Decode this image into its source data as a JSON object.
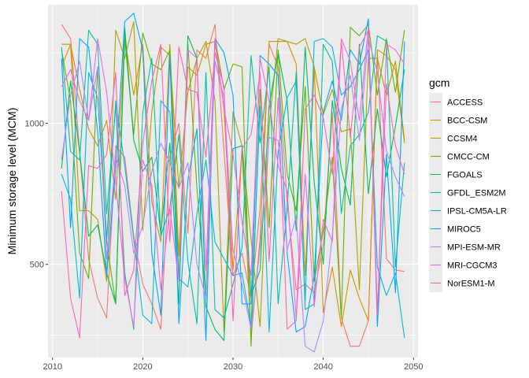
{
  "chart_data": {
    "type": "line",
    "title": "",
    "xlabel": "",
    "ylabel": "Minimum storage level (MCM)",
    "xlim": [
      2009.5,
      2050.5
    ],
    "ylim": [
      170,
      1420
    ],
    "x_ticks": [
      2010,
      2020,
      2030,
      2040,
      2050
    ],
    "y_ticks": [
      500,
      1000
    ],
    "x_tick_labels": [
      "2010",
      "2020",
      "2030",
      "2040",
      "2050"
    ],
    "y_tick_labels": [
      "500",
      "1000"
    ],
    "legend_title": "gcm",
    "legend_position": "right",
    "grid": true,
    "panel_background": "#ebebeb",
    "x": [
      2011,
      2012,
      2013,
      2014,
      2015,
      2016,
      2017,
      2018,
      2019,
      2020,
      2021,
      2022,
      2023,
      2024,
      2025,
      2026,
      2027,
      2028,
      2029,
      2030,
      2031,
      2032,
      2033,
      2034,
      2035,
      2036,
      2037,
      2038,
      2039,
      2040,
      2041,
      2042,
      2043,
      2044,
      2045,
      2046,
      2047,
      2048,
      2049
    ],
    "series": [
      {
        "name": "ACCESS",
        "color": "#F8766D",
        "values": [
          1350,
          1300,
          900,
          520,
          380,
          310,
          920,
          880,
          600,
          430,
          360,
          270,
          880,
          1000,
          610,
          1260,
          1230,
          1350,
          900,
          460,
          540,
          380,
          700,
          1280,
          1200,
          720,
          410,
          430,
          400,
          570,
          1040,
          310,
          210,
          210,
          300,
          1250,
          520,
          480,
          475
        ]
      },
      {
        "name": "BCC-CSM",
        "color": "#DB8E00",
        "values": [
          1200,
          1280,
          1120,
          980,
          920,
          1010,
          730,
          1300,
          1100,
          1280,
          720,
          580,
          1280,
          530,
          1200,
          1170,
          1280,
          1290,
          1050,
          480,
          910,
          240,
          590,
          1290,
          1290,
          1290,
          1210,
          460,
          1200,
          330,
          490,
          280,
          480,
          380,
          300,
          1260,
          1240,
          1190,
          930
        ]
      },
      {
        "name": "CCSM4",
        "color": "#AEA200",
        "values": [
          1280,
          1280,
          690,
          690,
          660,
          440,
          1330,
          1230,
          1360,
          620,
          1040,
          1270,
          1240,
          770,
          1110,
          1230,
          1290,
          1080,
          260,
          1040,
          920,
          590,
          280,
          990,
          1300,
          1290,
          1280,
          1300,
          1200,
          1030,
          1120,
          970,
          980,
          410,
          1230,
          1230,
          1100,
          1220,
          940
        ]
      },
      {
        "name": "CMCC-CM",
        "color": "#64B200",
        "values": [
          1260,
          1080,
          540,
          450,
          1200,
          580,
          360,
          1300,
          960,
          1320,
          1210,
          1190,
          1260,
          450,
          1280,
          770,
          380,
          1300,
          1120,
          1210,
          1200,
          210,
          1120,
          630,
          1260,
          820,
          690,
          1130,
          440,
          620,
          880,
          310,
          1340,
          1310,
          1350,
          1100,
          1300,
          1110,
          1330
        ]
      },
      {
        "name": "FGOALS",
        "color": "#00BD5C",
        "values": [
          840,
          1150,
          900,
          600,
          640,
          470,
          360,
          1340,
          940,
          830,
          880,
          610,
          930,
          360,
          1310,
          1230,
          350,
          270,
          230,
          910,
          920,
          390,
          480,
          1060,
          1250,
          1080,
          620,
          1270,
          790,
          500,
          1080,
          840,
          710,
          1280,
          750,
          1050,
          810,
          990,
          1190
        ]
      },
      {
        "name": "GFDL_ESM2M",
        "color": "#00C1A7",
        "values": [
          1270,
          900,
          870,
          1330,
          1280,
          680,
          1060,
          470,
          270,
          1040,
          1230,
          600,
          700,
          960,
          510,
          290,
          1180,
          340,
          310,
          430,
          560,
          1240,
          930,
          1200,
          360,
          700,
          1180,
          340,
          360,
          1280,
          1220,
          680,
          920,
          960,
          1040,
          1310,
          1290,
          490,
          860
        ]
      },
      {
        "name": "IPSL-CM5A-LR",
        "color": "#00BADE",
        "values": [
          820,
          730,
          380,
          1180,
          1090,
          590,
          1080,
          850,
          590,
          320,
          290,
          1080,
          1040,
          450,
          420,
          680,
          870,
          580,
          520,
          460,
          470,
          280,
          1060,
          260,
          900,
          1090,
          1150,
          370,
          1290,
          1300,
          1270,
          1100,
          1130,
          1190,
          1260,
          490,
          390,
          470,
          240
        ]
      },
      {
        "name": "MIROC5",
        "color": "#00A6FF",
        "values": [
          1230,
          630,
          1300,
          1270,
          970,
          460,
          840,
          1360,
          1390,
          1260,
          540,
          320,
          1240,
          290,
          800,
          980,
          230,
          1300,
          1250,
          1100,
          360,
          360,
          1240,
          1210,
          1170,
          540,
          260,
          280,
          460,
          1040,
          1150,
          1010,
          1260,
          1210,
          1370,
          280,
          890,
          400,
          1290
        ]
      },
      {
        "name": "MPI-ESM-MR",
        "color": "#B385FF",
        "values": [
          870,
          1100,
          1220,
          1010,
          1200,
          520,
          880,
          780,
          540,
          640,
          830,
          930,
          860,
          770,
          860,
          500,
          380,
          1220,
          1090,
          550,
          430,
          270,
          560,
          950,
          940,
          550,
          670,
          210,
          190,
          300,
          600,
          1050,
          1170,
          940,
          1300,
          1180,
          900,
          810,
          740
        ]
      },
      {
        "name": "MRI-CGCM3",
        "color": "#EF67EB",
        "values": [
          1130,
          1190,
          1080,
          1010,
          1300,
          1110,
          790,
          450,
          280,
          870,
          780,
          410,
          700,
          440,
          1260,
          1230,
          480,
          1300,
          1050,
          890,
          650,
          460,
          1230,
          1080,
          850,
          760,
          310,
          820,
          350,
          660,
          580,
          1300,
          1220,
          1010,
          1340,
          320,
          1280,
          1260,
          1210
        ]
      },
      {
        "name": "NorESM1-M",
        "color": "#FF63B6",
        "values": [
          760,
          380,
          240,
          850,
          840,
          890,
          1180,
          390,
          480,
          930,
          1150,
          1280,
          580,
          1270,
          1120,
          1110,
          880,
          1250,
          1130,
          300,
          910,
          960,
          1180,
          510,
          1090,
          270,
          300,
          1050,
          1100,
          1020,
          820,
          1290,
          950,
          1270,
          1330,
          330,
          1140,
          920,
          820
        ]
      }
    ]
  }
}
